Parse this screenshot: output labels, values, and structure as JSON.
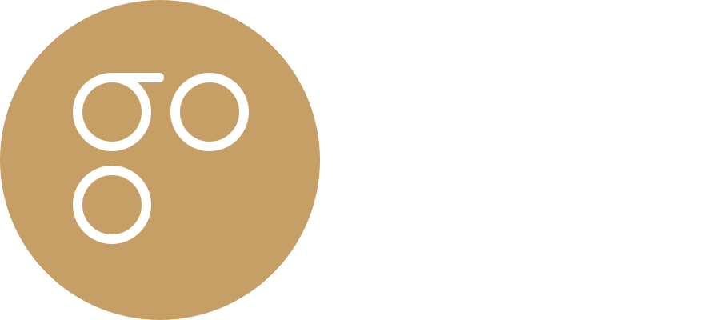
{
  "logo": {
    "name": "omisego-logo-mark",
    "lettering": "goo",
    "colors": {
      "circle_fill": "#C59F66",
      "glyph_stroke": "#FFFFFF",
      "background": "#FFFFFF"
    }
  }
}
